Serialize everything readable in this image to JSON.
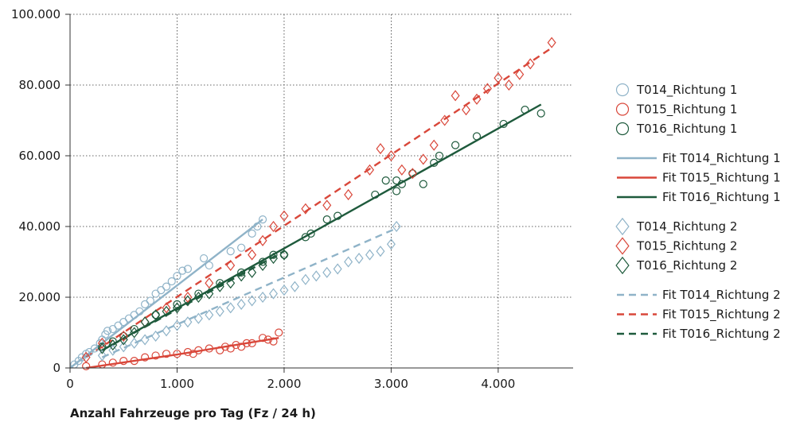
{
  "chart_data": {
    "type": "scatter",
    "title": "",
    "xlabel": "Anzahl Fahrzeuge pro Tag (Fz / 24 h)",
    "ylabel": "",
    "xlim": [
      0,
      4700
    ],
    "ylim": [
      0,
      100000
    ],
    "xticks": [
      0,
      1000,
      2000,
      3000,
      4000
    ],
    "xtick_labels": [
      "0",
      "1.000",
      "2.000",
      "3.000",
      "4.000"
    ],
    "yticks": [
      0,
      20000,
      40000,
      60000,
      80000,
      100000
    ],
    "ytick_labels": [
      "0",
      "20.000",
      "40.000",
      "60.000",
      "80.000",
      "100.000"
    ],
    "grid": true,
    "legend_position": "right",
    "colors": {
      "T014": "#8fb3c8",
      "T015": "#d9473a",
      "T016": "#1e5a3c"
    },
    "series": [
      {
        "name": "T014_Richtung 1",
        "kind": "scatter",
        "marker": "circle",
        "color": "#8fb3c8",
        "points": [
          [
            40,
            1000
          ],
          [
            80,
            2000
          ],
          [
            110,
            3000
          ],
          [
            150,
            4000
          ],
          [
            180,
            4500
          ],
          [
            230,
            5500
          ],
          [
            280,
            7000
          ],
          [
            300,
            8000
          ],
          [
            330,
            9500
          ],
          [
            350,
            10500
          ],
          [
            400,
            11000
          ],
          [
            450,
            12000
          ],
          [
            500,
            13000
          ],
          [
            550,
            14000
          ],
          [
            600,
            15000
          ],
          [
            650,
            16000
          ],
          [
            700,
            18000
          ],
          [
            750,
            19000
          ],
          [
            800,
            21000
          ],
          [
            850,
            22000
          ],
          [
            900,
            23000
          ],
          [
            950,
            24500
          ],
          [
            1000,
            26000
          ],
          [
            1050,
            27500
          ],
          [
            1100,
            28000
          ],
          [
            1250,
            31000
          ],
          [
            1300,
            29000
          ],
          [
            1500,
            33000
          ],
          [
            1600,
            34000
          ],
          [
            1700,
            38000
          ],
          [
            1750,
            40000
          ],
          [
            1800,
            42000
          ]
        ]
      },
      {
        "name": "T015_Richtung 1",
        "kind": "scatter",
        "marker": "circle",
        "color": "#d9473a",
        "points": [
          [
            150,
            500
          ],
          [
            300,
            1000
          ],
          [
            400,
            1500
          ],
          [
            500,
            2000
          ],
          [
            600,
            2000
          ],
          [
            700,
            3000
          ],
          [
            800,
            3500
          ],
          [
            900,
            4000
          ],
          [
            1000,
            4000
          ],
          [
            1100,
            4500
          ],
          [
            1150,
            4000
          ],
          [
            1200,
            5000
          ],
          [
            1300,
            5500
          ],
          [
            1400,
            5000
          ],
          [
            1450,
            6000
          ],
          [
            1500,
            5500
          ],
          [
            1550,
            6500
          ],
          [
            1600,
            6000
          ],
          [
            1650,
            7000
          ],
          [
            1700,
            7000
          ],
          [
            1800,
            8500
          ],
          [
            1850,
            8000
          ],
          [
            1900,
            7500
          ],
          [
            1950,
            10000
          ]
        ]
      },
      {
        "name": "T016_Richtung 1",
        "kind": "scatter",
        "marker": "circle",
        "color": "#1e5a3c",
        "points": [
          [
            300,
            6000
          ],
          [
            400,
            7500
          ],
          [
            500,
            9000
          ],
          [
            600,
            11000
          ],
          [
            800,
            15000
          ],
          [
            1000,
            18000
          ],
          [
            1200,
            21000
          ],
          [
            1400,
            24000
          ],
          [
            1600,
            27000
          ],
          [
            1800,
            30000
          ],
          [
            1900,
            32000
          ],
          [
            2000,
            32000
          ],
          [
            2200,
            37000
          ],
          [
            2250,
            38000
          ],
          [
            2400,
            42000
          ],
          [
            2500,
            43000
          ],
          [
            2850,
            49000
          ],
          [
            2950,
            53000
          ],
          [
            3050,
            50000
          ],
          [
            3050,
            53000
          ],
          [
            3100,
            52000
          ],
          [
            3200,
            55000
          ],
          [
            3300,
            52000
          ],
          [
            3400,
            58000
          ],
          [
            3450,
            60000
          ],
          [
            3600,
            63000
          ],
          [
            3800,
            65500
          ],
          [
            4050,
            69000
          ],
          [
            4250,
            73000
          ],
          [
            4400,
            72000
          ]
        ]
      },
      {
        "name": "T014_Richtung 2",
        "kind": "scatter",
        "marker": "diamond",
        "color": "#8fb3c8",
        "points": [
          [
            300,
            3500
          ],
          [
            400,
            5000
          ],
          [
            500,
            6000
          ],
          [
            600,
            7000
          ],
          [
            700,
            8000
          ],
          [
            800,
            9000
          ],
          [
            900,
            10500
          ],
          [
            1000,
            12000
          ],
          [
            1100,
            13000
          ],
          [
            1200,
            14000
          ],
          [
            1300,
            15000
          ],
          [
            1400,
            16000
          ],
          [
            1500,
            17000
          ],
          [
            1600,
            18000
          ],
          [
            1700,
            19000
          ],
          [
            1800,
            20000
          ],
          [
            1900,
            21000
          ],
          [
            2000,
            22000
          ],
          [
            2100,
            23000
          ],
          [
            2200,
            25000
          ],
          [
            2300,
            26000
          ],
          [
            2400,
            27000
          ],
          [
            2500,
            28000
          ],
          [
            2600,
            30000
          ],
          [
            2700,
            31000
          ],
          [
            2800,
            32000
          ],
          [
            2900,
            33000
          ],
          [
            3000,
            35000
          ],
          [
            3050,
            40000
          ]
        ]
      },
      {
        "name": "T015_Richtung 2",
        "kind": "scatter",
        "marker": "diamond",
        "color": "#d9473a",
        "points": [
          [
            150,
            3000
          ],
          [
            300,
            7000
          ],
          [
            500,
            9000
          ],
          [
            700,
            13000
          ],
          [
            900,
            17000
          ],
          [
            1100,
            20000
          ],
          [
            1300,
            24000
          ],
          [
            1500,
            29000
          ],
          [
            1700,
            32000
          ],
          [
            1800,
            36000
          ],
          [
            1900,
            40000
          ],
          [
            2000,
            43000
          ],
          [
            2200,
            45000
          ],
          [
            2400,
            46000
          ],
          [
            2600,
            49000
          ],
          [
            2800,
            56000
          ],
          [
            2900,
            62000
          ],
          [
            3000,
            60000
          ],
          [
            3100,
            56000
          ],
          [
            3200,
            55000
          ],
          [
            3300,
            59000
          ],
          [
            3400,
            63000
          ],
          [
            3500,
            70000
          ],
          [
            3600,
            77000
          ],
          [
            3700,
            73000
          ],
          [
            3800,
            76000
          ],
          [
            3900,
            79000
          ],
          [
            4000,
            82000
          ],
          [
            4100,
            80000
          ],
          [
            4200,
            83000
          ],
          [
            4300,
            86000
          ],
          [
            4500,
            92000
          ]
        ]
      },
      {
        "name": "T016_Richtung 2",
        "kind": "scatter",
        "marker": "diamond",
        "color": "#1e5a3c",
        "points": [
          [
            300,
            5500
          ],
          [
            400,
            6500
          ],
          [
            500,
            8000
          ],
          [
            600,
            10000
          ],
          [
            700,
            13000
          ],
          [
            800,
            15000
          ],
          [
            900,
            16000
          ],
          [
            1000,
            17000
          ],
          [
            1100,
            19000
          ],
          [
            1200,
            20000
          ],
          [
            1300,
            21000
          ],
          [
            1400,
            23000
          ],
          [
            1500,
            24000
          ],
          [
            1600,
            26000
          ],
          [
            1700,
            27000
          ],
          [
            1800,
            29000
          ],
          [
            1900,
            31000
          ],
          [
            2000,
            32000
          ]
        ]
      },
      {
        "name": "Fit T014_Richtung 1",
        "kind": "line",
        "dash": false,
        "color": "#8fb3c8",
        "points": [
          [
            0,
            0
          ],
          [
            1800,
            42000
          ]
        ]
      },
      {
        "name": "Fit T015_Richtung 1",
        "kind": "line",
        "dash": false,
        "color": "#d9473a",
        "points": [
          [
            150,
            0
          ],
          [
            1000,
            3800
          ],
          [
            1950,
            8500
          ]
        ]
      },
      {
        "name": "Fit T016_Richtung 1",
        "kind": "line",
        "dash": false,
        "color": "#1e5a3c",
        "points": [
          [
            300,
            5000
          ],
          [
            4400,
            74500
          ]
        ]
      },
      {
        "name": "Fit T014_Richtung 2",
        "kind": "line",
        "dash": true,
        "color": "#8fb3c8",
        "points": [
          [
            300,
            3000
          ],
          [
            3050,
            39500
          ]
        ]
      },
      {
        "name": "Fit T015_Richtung 2",
        "kind": "line",
        "dash": true,
        "color": "#d9473a",
        "points": [
          [
            150,
            3000
          ],
          [
            4500,
            90500
          ]
        ]
      },
      {
        "name": "Fit T016_Richtung 2",
        "kind": "line",
        "dash": true,
        "color": "#1e5a3c",
        "points": [
          [
            300,
            5000
          ],
          [
            2000,
            33000
          ]
        ]
      }
    ],
    "legend": [
      {
        "label": "T014_Richtung 1",
        "series": 0
      },
      {
        "label": "T015_Richtung 1",
        "series": 1
      },
      {
        "label": "T016_Richtung 1",
        "series": 2
      },
      {
        "label": "Fit T014_Richtung 1",
        "series": 6
      },
      {
        "label": "Fit T015_Richtung 1",
        "series": 7
      },
      {
        "label": "Fit T016_Richtung 1",
        "series": 8
      },
      {
        "label": "T014_Richtung 2",
        "series": 3
      },
      {
        "label": "T015_Richtung 2",
        "series": 4
      },
      {
        "label": "T016_Richtung 2",
        "series": 5
      },
      {
        "label": "Fit T014_Richtung 2",
        "series": 9
      },
      {
        "label": "Fit T015_Richtung 2",
        "series": 10
      },
      {
        "label": "Fit T016_Richtung 2",
        "series": 11
      }
    ]
  }
}
